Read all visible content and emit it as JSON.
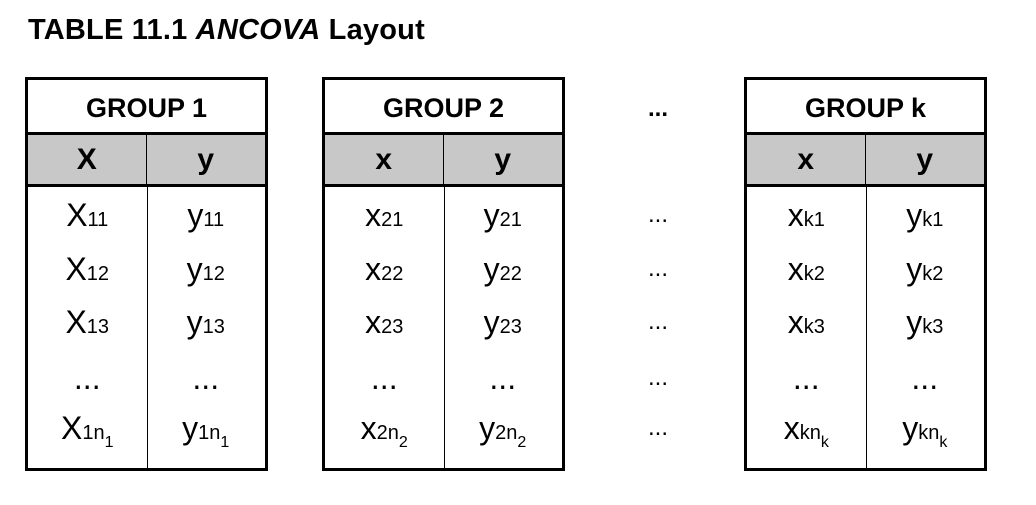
{
  "caption": {
    "prefix": "TABLE 11.1 ",
    "italic": "ANCOVA",
    "suffix": " Layout"
  },
  "groups": [
    {
      "title": "GROUP 1",
      "x_header": "X",
      "y_header": "y",
      "rows": [
        {
          "x": "X",
          "x_sub": "11",
          "x_sub2": "",
          "y": "y",
          "y_sub": "11",
          "y_sub2": ""
        },
        {
          "x": "X",
          "x_sub": "12",
          "x_sub2": "",
          "y": "y",
          "y_sub": "12",
          "y_sub2": ""
        },
        {
          "x": "X",
          "x_sub": "13",
          "x_sub2": "",
          "y": "y",
          "y_sub": "13",
          "y_sub2": ""
        },
        {
          "x": "...",
          "x_sub": "",
          "x_sub2": "",
          "y": "...",
          "y_sub": "",
          "y_sub2": ""
        },
        {
          "x": "X",
          "x_sub": "1n",
          "x_sub2": "1",
          "y": "y",
          "y_sub": "1n",
          "y_sub2": "1"
        }
      ]
    },
    {
      "title": "GROUP 2",
      "x_header": "x",
      "y_header": "y",
      "rows": [
        {
          "x": "x",
          "x_sub": "21",
          "x_sub2": "",
          "y": "y",
          "y_sub": "21",
          "y_sub2": ""
        },
        {
          "x": "x",
          "x_sub": "22",
          "x_sub2": "",
          "y": "y",
          "y_sub": "22",
          "y_sub2": ""
        },
        {
          "x": "x",
          "x_sub": "23",
          "x_sub2": "",
          "y": "y",
          "y_sub": "23",
          "y_sub2": ""
        },
        {
          "x": "...",
          "x_sub": "",
          "x_sub2": "",
          "y": "...",
          "y_sub": "",
          "y_sub2": ""
        },
        {
          "x": "x",
          "x_sub": "2n",
          "x_sub2": "2",
          "y": "y",
          "y_sub": "2n",
          "y_sub2": "2"
        }
      ]
    },
    {
      "title": "GROUP k",
      "x_header": "x",
      "y_header": "y",
      "rows": [
        {
          "x": "x",
          "x_sub": "k1",
          "x_sub2": "",
          "y": "y",
          "y_sub": "k1",
          "y_sub2": ""
        },
        {
          "x": "x",
          "x_sub": "k2",
          "x_sub2": "",
          "y": "y",
          "y_sub": "k2",
          "y_sub2": ""
        },
        {
          "x": "x",
          "x_sub": "k3",
          "x_sub2": "",
          "y": "y",
          "y_sub": "k3",
          "y_sub2": ""
        },
        {
          "x": "...",
          "x_sub": "",
          "x_sub2": "",
          "y": "...",
          "y_sub": "",
          "y_sub2": ""
        },
        {
          "x": "x",
          "x_sub": "kn",
          "x_sub2": "k",
          "y": "y",
          "y_sub": "kn",
          "y_sub2": "k"
        }
      ]
    }
  ],
  "between": {
    "header": "...",
    "rows": [
      "...",
      "...",
      "...",
      "...",
      "..."
    ]
  }
}
